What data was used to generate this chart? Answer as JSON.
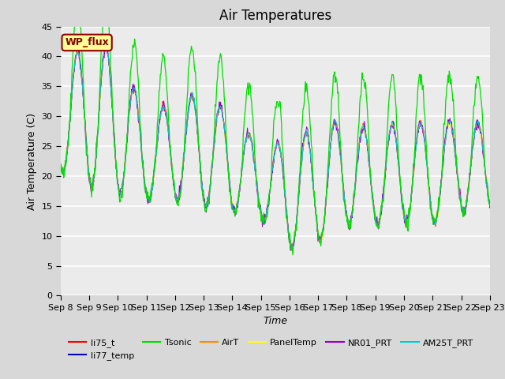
{
  "title": "Air Temperatures",
  "xlabel": "Time",
  "ylabel": "Air Temperature (C)",
  "ylim": [
    0,
    45
  ],
  "yticks": [
    0,
    5,
    10,
    15,
    20,
    25,
    30,
    35,
    40,
    45
  ],
  "x_tick_labels": [
    "Sep 8",
    "Sep 9",
    "Sep 10",
    "Sep 11",
    "Sep 12",
    "Sep 13",
    "Sep 14",
    "Sep 15",
    "Sep 16",
    "Sep 17",
    "Sep 18",
    "Sep 19",
    "Sep 20",
    "Sep 21",
    "Sep 22",
    "Sep 23"
  ],
  "annotation_text": "WP_flux",
  "annotation_color": "#8B0000",
  "annotation_bg": "#FFFF99",
  "annotation_border": "#8B0000",
  "series_colors": {
    "li75_t": "#FF0000",
    "li77_temp": "#0000CD",
    "Tsonic": "#00DD00",
    "AirT": "#FF8C00",
    "PanelTemp": "#FFFF00",
    "NR01_PRT": "#9400D3",
    "AM25T_PRT": "#00CCCC"
  },
  "bg_color": "#D8D8D8",
  "plot_bg": "#EBEBEB",
  "grid_color": "#FFFFFF",
  "title_fontsize": 12,
  "axis_fontsize": 9,
  "tick_fontsize": 8,
  "legend_fontsize": 8
}
